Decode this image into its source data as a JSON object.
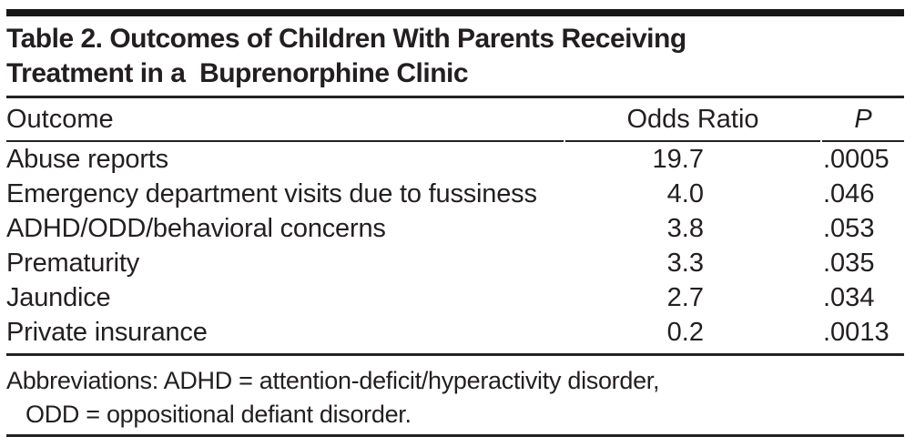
{
  "colors": {
    "background": "#ffffff",
    "text": "#231f20",
    "rule": "#232121",
    "top_bar": "#161616"
  },
  "table": {
    "title": "Table 2. Outcomes of Children With Parents Receiving\nTreatment in a  Buprenorphine Clinic",
    "columns": [
      {
        "key": "outcome",
        "label": "Outcome"
      },
      {
        "key": "odds_ratio",
        "label": "Odds Ratio"
      },
      {
        "key": "p",
        "label": "P"
      }
    ],
    "rows": [
      {
        "outcome": "Abuse reports",
        "odds_ratio": "19.7",
        "p": ".0005"
      },
      {
        "outcome": "Emergency department visits due to fussiness",
        "odds_ratio": "4.0",
        "p": ".046"
      },
      {
        "outcome": "ADHD/ODD/behavioral concerns",
        "odds_ratio": "3.8",
        "p": ".053"
      },
      {
        "outcome": "Prematurity",
        "odds_ratio": "3.3",
        "p": ".035"
      },
      {
        "outcome": "Jaundice",
        "odds_ratio": "2.7",
        "p": ".034"
      },
      {
        "outcome": "Private insurance",
        "odds_ratio": "0.2",
        "p": ".0013"
      }
    ],
    "footnote": {
      "line1": "Abbreviations: ADHD = attention-deficit/hyperactivity disorder,",
      "line2": "ODD = oppositional defiant disorder."
    }
  }
}
